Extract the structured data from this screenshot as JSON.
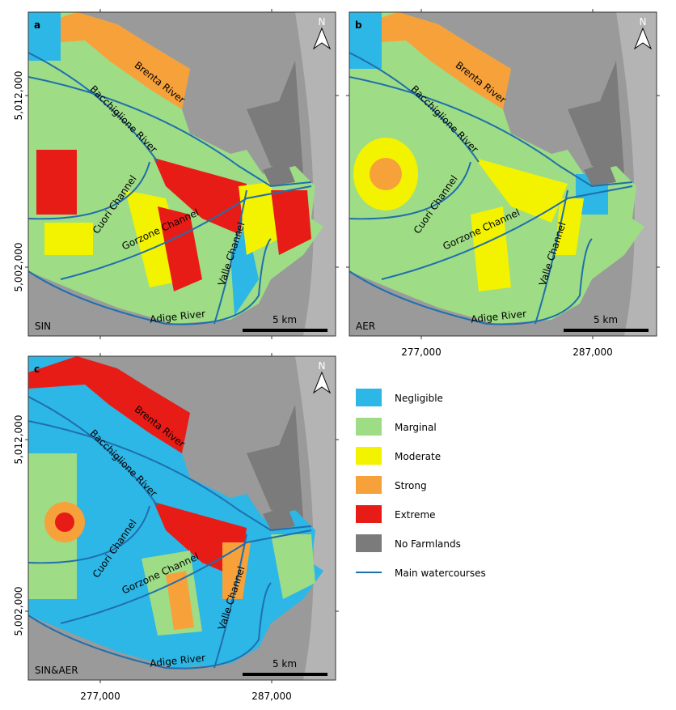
{
  "panels": [
    {
      "letter": "a",
      "label": "SIN"
    },
    {
      "letter": "b",
      "label": "AER"
    },
    {
      "letter": "c",
      "label": "SIN&AER"
    }
  ],
  "rivers": [
    "Brenta River",
    "Bacchiglione River",
    "Cuori Channel",
    "Gorzone Channel",
    "Valle Channel",
    "Adige River"
  ],
  "scale_bar": "5 km",
  "north": "N",
  "y_ticks": [
    "5,012,000",
    "5,002,000"
  ],
  "x_ticks": [
    "277,000",
    "287,000"
  ],
  "legend": [
    {
      "label": "Negligible",
      "color": "#2db7e6"
    },
    {
      "label": "Marginal",
      "color": "#9edc86"
    },
    {
      "label": "Moderate",
      "color": "#f3f300"
    },
    {
      "label": "Strong",
      "color": "#f7a13b"
    },
    {
      "label": "Extreme",
      "color": "#e81c17"
    },
    {
      "label": "No Farmlands",
      "color": "#7b7b7b"
    }
  ],
  "watercourses": {
    "label": "Main watercourses",
    "color": "#1f6fad"
  }
}
